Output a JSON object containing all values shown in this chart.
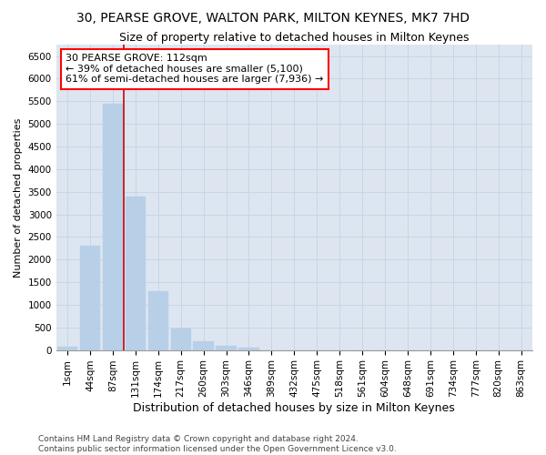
{
  "title": "30, PEARSE GROVE, WALTON PARK, MILTON KEYNES, MK7 7HD",
  "subtitle": "Size of property relative to detached houses in Milton Keynes",
  "xlabel": "Distribution of detached houses by size in Milton Keynes",
  "ylabel": "Number of detached properties",
  "footer_line1": "Contains HM Land Registry data © Crown copyright and database right 2024.",
  "footer_line2": "Contains public sector information licensed under the Open Government Licence v3.0.",
  "property_label": "30 PEARSE GROVE: 112sqm",
  "annotation_line1": "← 39% of detached houses are smaller (5,100)",
  "annotation_line2": "61% of semi-detached houses are larger (7,936) →",
  "bar_color": "#b8cfe8",
  "bar_edge_color": "#b8cfe8",
  "vline_color": "#cc0000",
  "grid_color": "#c8d4e8",
  "bg_color": "#dde6f0",
  "categories": [
    "1sqm",
    "44sqm",
    "87sqm",
    "131sqm",
    "174sqm",
    "217sqm",
    "260sqm",
    "303sqm",
    "346sqm",
    "389sqm",
    "432sqm",
    "475sqm",
    "518sqm",
    "561sqm",
    "604sqm",
    "648sqm",
    "691sqm",
    "734sqm",
    "777sqm",
    "820sqm",
    "863sqm"
  ],
  "values": [
    70,
    2300,
    5450,
    3400,
    1300,
    475,
    200,
    90,
    50,
    0,
    0,
    0,
    0,
    0,
    0,
    0,
    0,
    0,
    0,
    0,
    0
  ],
  "ylim": [
    0,
    6750
  ],
  "yticks": [
    0,
    500,
    1000,
    1500,
    2000,
    2500,
    3000,
    3500,
    4000,
    4500,
    5000,
    5500,
    6000,
    6500
  ],
  "vline_pos": 2.5,
  "title_fontsize": 10,
  "subtitle_fontsize": 9,
  "xlabel_fontsize": 9,
  "ylabel_fontsize": 8,
  "tick_fontsize": 7.5,
  "annotation_fontsize": 8
}
